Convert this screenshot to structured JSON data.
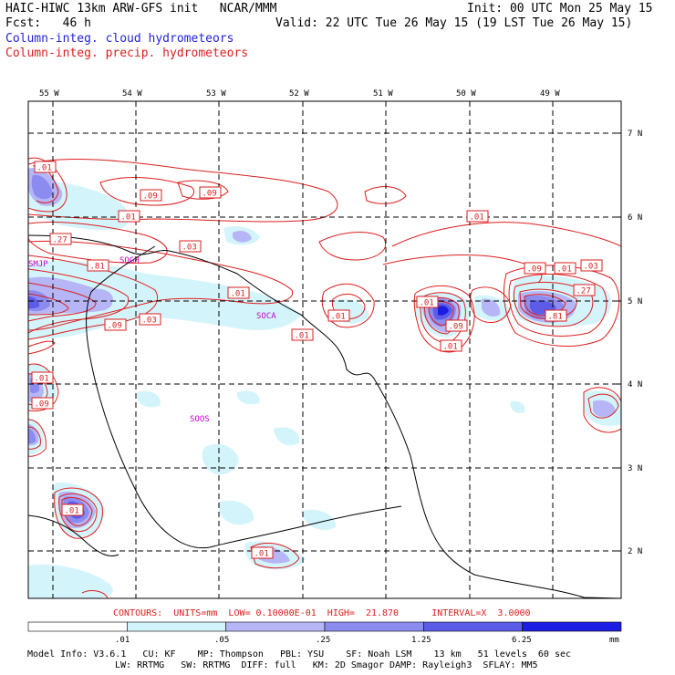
{
  "header": {
    "title": "HAIC-HIWC 13km ARW-GFS init   NCAR/MMM",
    "forecast": "Fcst:   46 h",
    "init": "Init: 00 UTC Mon 25 May 15",
    "valid": "Valid: 22 UTC Tue 26 May 15 (19 LST Tue 26 May 15)",
    "field_cloud": "Column-integ. cloud hydrometeors",
    "field_precip": "Column-integ. precip. hydrometeors"
  },
  "map": {
    "lon_labels": [
      "55 W",
      "54 W",
      "53 W",
      "52 W",
      "51 W",
      "50 W",
      "49 W"
    ],
    "lat_labels": [
      "7 N",
      "6 N",
      "5 N",
      "4 N",
      "3 N",
      "2 N"
    ],
    "stations": [
      "SMJP",
      "SOGH",
      "SOCA",
      "SOOS"
    ],
    "contour_labels": [
      ".01",
      ".09",
      ".09",
      ".01",
      ".27",
      ".03",
      ".81",
      ".01",
      ".09",
      ".03",
      ".01",
      ".01",
      ".01",
      ".09",
      ".01",
      ".01",
      ".09",
      ".27",
      ".03",
      ".81",
      ".01",
      ".09",
      ".01",
      ".01",
      ".01"
    ]
  },
  "colors": {
    "cloud": "#2323dc",
    "precip": "#dc1e1e",
    "station": "#c800c8",
    "fill_levels": [
      "#ffffff",
      "#d4f4fb",
      "#b6b6f6",
      "#8c8cf0",
      "#5c5ce8",
      "#1c1ce4"
    ]
  },
  "contour_info": {
    "text": "CONTOURS:  UNITS=mm  LOW= 0.10000E-01  HIGH=  21.870      INTERVAL=X  3.0000"
  },
  "colorbar": {
    "ticks": [
      ".01",
      ".05",
      ".25",
      "1.25",
      "6.25"
    ],
    "unit": "mm"
  },
  "footer": {
    "line1": "Model Info: V3.6.1   CU: KF    MP: Thompson   PBL: YSU    SF: Noah LSM    13 km   51 levels  60 sec",
    "line2": "LW: RRTMG   SW: RRTMG  DIFF: full   KM: 2D Smagor DAMP: Rayleigh3  SFLAY: MM5"
  }
}
